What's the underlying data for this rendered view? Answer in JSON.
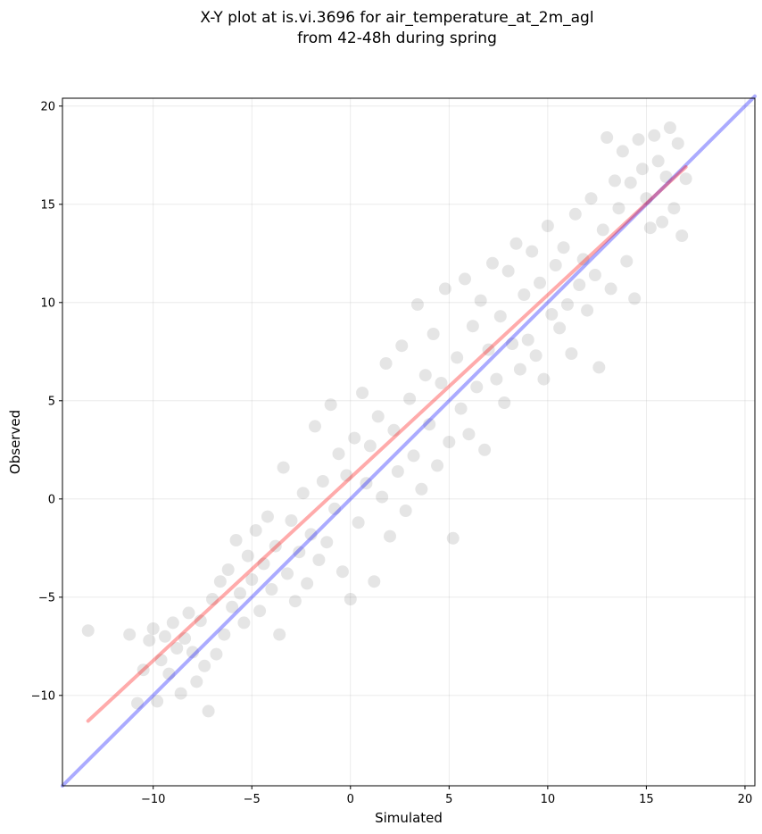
{
  "chart_data": {
    "type": "scatter",
    "title": [
      "X-Y plot at is.vi.3696 for air_temperature_at_2m_agl",
      "from 42-48h during spring"
    ],
    "xlabel": "Simulated",
    "ylabel": "Observed",
    "xlim": [
      -14.6,
      20.5
    ],
    "ylim": [
      -14.6,
      20.4
    ],
    "xticks": [
      -10,
      -5,
      0,
      5,
      10,
      15,
      20
    ],
    "xtick_labels": [
      "−10",
      "−5",
      "0",
      "5",
      "10",
      "15",
      "20"
    ],
    "yticks": [
      -10,
      -5,
      0,
      5,
      10,
      15,
      20
    ],
    "ytick_labels": [
      "−10",
      "−5",
      "0",
      "5",
      "10",
      "15",
      "20"
    ],
    "grid": true,
    "point_color": "#000000",
    "point_alpha": 0.1,
    "fit_line": {
      "color": "#ff0000",
      "x": [
        -13.3,
        17.0
      ],
      "y": [
        -11.3,
        16.9
      ]
    },
    "identity_line": {
      "color": "#0000ff",
      "x": [
        -14.6,
        20.5
      ],
      "y": [
        -14.6,
        20.5
      ]
    },
    "points": [
      [
        -13.3,
        -6.7
      ],
      [
        -11.2,
        -6.9
      ],
      [
        -10.8,
        -10.4
      ],
      [
        -10.5,
        -8.7
      ],
      [
        -10.2,
        -7.2
      ],
      [
        -10.0,
        -6.6
      ],
      [
        -9.8,
        -10.3
      ],
      [
        -9.6,
        -8.2
      ],
      [
        -9.4,
        -7.0
      ],
      [
        -9.2,
        -8.9
      ],
      [
        -9.0,
        -6.3
      ],
      [
        -8.8,
        -7.6
      ],
      [
        -8.6,
        -9.9
      ],
      [
        -8.4,
        -7.1
      ],
      [
        -8.2,
        -5.8
      ],
      [
        -8.0,
        -7.8
      ],
      [
        -7.8,
        -9.3
      ],
      [
        -7.6,
        -6.2
      ],
      [
        -7.4,
        -8.5
      ],
      [
        -7.2,
        -10.8
      ],
      [
        -7.0,
        -5.1
      ],
      [
        -6.8,
        -7.9
      ],
      [
        -6.6,
        -4.2
      ],
      [
        -6.4,
        -6.9
      ],
      [
        -6.2,
        -3.6
      ],
      [
        -6.0,
        -5.5
      ],
      [
        -5.8,
        -2.1
      ],
      [
        -5.6,
        -4.8
      ],
      [
        -5.4,
        -6.3
      ],
      [
        -5.2,
        -2.9
      ],
      [
        -5.0,
        -4.1
      ],
      [
        -4.8,
        -1.6
      ],
      [
        -4.6,
        -5.7
      ],
      [
        -4.4,
        -3.3
      ],
      [
        -4.2,
        -0.9
      ],
      [
        -4.0,
        -4.6
      ],
      [
        -3.8,
        -2.4
      ],
      [
        -3.6,
        -6.9
      ],
      [
        -3.4,
        1.6
      ],
      [
        -3.2,
        -3.8
      ],
      [
        -3.0,
        -1.1
      ],
      [
        -2.8,
        -5.2
      ],
      [
        -2.6,
        -2.7
      ],
      [
        -2.4,
        0.3
      ],
      [
        -2.2,
        -4.3
      ],
      [
        -2.0,
        -1.8
      ],
      [
        -1.8,
        3.7
      ],
      [
        -1.6,
        -3.1
      ],
      [
        -1.4,
        0.9
      ],
      [
        -1.2,
        -2.2
      ],
      [
        -1.0,
        4.8
      ],
      [
        -0.8,
        -0.5
      ],
      [
        -0.6,
        2.3
      ],
      [
        -0.4,
        -3.7
      ],
      [
        -0.2,
        1.2
      ],
      [
        0.0,
        -5.1
      ],
      [
        0.2,
        3.1
      ],
      [
        0.4,
        -1.2
      ],
      [
        0.6,
        5.4
      ],
      [
        0.8,
        0.8
      ],
      [
        1.0,
        2.7
      ],
      [
        1.2,
        -4.2
      ],
      [
        1.4,
        4.2
      ],
      [
        1.6,
        0.1
      ],
      [
        1.8,
        6.9
      ],
      [
        2.0,
        -1.9
      ],
      [
        2.2,
        3.5
      ],
      [
        2.4,
        1.4
      ],
      [
        2.6,
        7.8
      ],
      [
        2.8,
        -0.6
      ],
      [
        3.0,
        5.1
      ],
      [
        3.2,
        2.2
      ],
      [
        3.4,
        9.9
      ],
      [
        3.6,
        0.5
      ],
      [
        3.8,
        6.3
      ],
      [
        4.0,
        3.8
      ],
      [
        4.2,
        8.4
      ],
      [
        4.4,
        1.7
      ],
      [
        4.6,
        5.9
      ],
      [
        4.8,
        10.7
      ],
      [
        5.0,
        2.9
      ],
      [
        5.2,
        -2.0
      ],
      [
        5.4,
        7.2
      ],
      [
        5.6,
        4.6
      ],
      [
        5.8,
        11.2
      ],
      [
        6.0,
        3.3
      ],
      [
        6.2,
        8.8
      ],
      [
        6.4,
        5.7
      ],
      [
        6.6,
        10.1
      ],
      [
        6.8,
        2.5
      ],
      [
        7.0,
        7.6
      ],
      [
        7.2,
        12.0
      ],
      [
        7.4,
        6.1
      ],
      [
        7.6,
        9.3
      ],
      [
        7.8,
        4.9
      ],
      [
        8.0,
        11.6
      ],
      [
        8.2,
        7.9
      ],
      [
        8.4,
        13.0
      ],
      [
        8.6,
        6.6
      ],
      [
        8.8,
        10.4
      ],
      [
        9.0,
        8.1
      ],
      [
        9.2,
        12.6
      ],
      [
        9.4,
        7.3
      ],
      [
        9.6,
        11.0
      ],
      [
        9.8,
        6.1
      ],
      [
        10.0,
        13.9
      ],
      [
        10.2,
        9.4
      ],
      [
        10.4,
        11.9
      ],
      [
        10.6,
        8.7
      ],
      [
        10.8,
        12.8
      ],
      [
        11.0,
        9.9
      ],
      [
        11.2,
        7.4
      ],
      [
        11.4,
        14.5
      ],
      [
        11.6,
        10.9
      ],
      [
        11.8,
        12.2
      ],
      [
        12.0,
        9.6
      ],
      [
        12.2,
        15.3
      ],
      [
        12.4,
        11.4
      ],
      [
        12.6,
        6.7
      ],
      [
        12.8,
        13.7
      ],
      [
        13.0,
        18.4
      ],
      [
        13.2,
        10.7
      ],
      [
        13.4,
        16.2
      ],
      [
        13.6,
        14.8
      ],
      [
        13.8,
        17.7
      ],
      [
        14.0,
        12.1
      ],
      [
        14.2,
        16.1
      ],
      [
        14.4,
        10.2
      ],
      [
        14.6,
        18.3
      ],
      [
        14.8,
        16.8
      ],
      [
        15.0,
        15.3
      ],
      [
        15.2,
        13.8
      ],
      [
        15.4,
        18.5
      ],
      [
        15.6,
        17.2
      ],
      [
        15.8,
        14.1
      ],
      [
        16.0,
        16.4
      ],
      [
        16.2,
        18.9
      ],
      [
        16.4,
        14.8
      ],
      [
        16.6,
        18.1
      ],
      [
        16.8,
        13.4
      ],
      [
        17.0,
        16.3
      ]
    ]
  }
}
